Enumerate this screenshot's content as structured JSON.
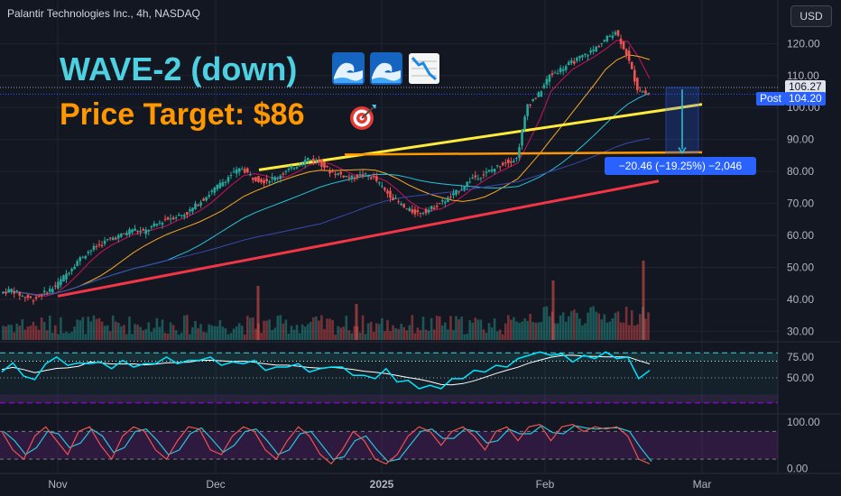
{
  "header": {
    "symbol_line": "Palantir Technologies Inc., 4h, NASDAQ",
    "currency_button": "USD"
  },
  "annotations": {
    "wave_title": "WAVE-2 (down)",
    "wave_icons": [
      "water-wave-icon",
      "water-wave-icon",
      "chart-decreasing-icon"
    ],
    "price_target": "Price Target: $86",
    "target_icon": "direct-hit-icon",
    "measure_label": "−20.46 (−19.25%) −2,046"
  },
  "price_scale": {
    "last_price": "106.27",
    "post_label": "Post",
    "post_price": "104.20",
    "colors": {
      "last": "#2962ff",
      "post": "#2962ff"
    }
  },
  "colors": {
    "background": "#131722",
    "up": "#26a69a",
    "down": "#ef5350",
    "wave_text": "#4dd0e1",
    "target_text": "#ff9800",
    "yellow_line": "#ffeb3b",
    "orange_line": "#ff9800",
    "red_line": "#f23645",
    "rsi_line": "#00e5ff",
    "stoch_k": "#ef5350",
    "stoch_d": "#26c6da"
  },
  "chart_data": [
    {
      "type": "line",
      "title": "Palantir Technologies Inc., 4h, NASDAQ",
      "y_axis": {
        "ticks": [
          "120.00",
          "110.00",
          "100.00",
          "90.00",
          "80.00",
          "70.00",
          "60.00",
          "50.00",
          "40.00",
          "30.00"
        ],
        "ylim": [
          27,
          128
        ]
      },
      "x_axis": {
        "ticks": [
          "Nov",
          "Dec",
          "2025",
          "Feb",
          "Mar"
        ]
      },
      "series": [
        {
          "values": [
            42,
            43,
            41,
            40,
            42,
            44,
            48,
            52,
            55,
            57,
            59,
            60,
            62,
            61,
            63,
            65,
            66,
            67,
            70,
            73,
            76,
            79,
            81,
            78,
            77,
            78,
            80,
            82,
            84,
            83,
            80,
            79,
            78,
            79,
            78,
            74,
            71,
            68,
            67,
            68,
            70,
            72,
            75,
            78,
            79,
            81,
            83,
            84,
            101,
            104,
            110,
            112,
            114,
            116,
            118,
            121,
            124,
            117,
            106,
            104
          ]
        }
      ],
      "levels": {
        "target": 86,
        "last": 106.27,
        "post": 104.2,
        "measure_top": 106.27,
        "measure_bottom": 85.81
      }
    },
    {
      "type": "line",
      "title": "",
      "y_axis": {
        "ticks": [
          "75.00",
          "50.00"
        ],
        "ylim": [
          10,
          90
        ]
      },
      "series": [
        {
          "values": [
            60,
            65,
            55,
            45,
            70,
            72,
            68,
            65,
            70,
            66,
            64,
            68,
            66,
            64,
            70,
            72,
            70,
            68,
            74,
            72,
            68,
            66,
            70,
            68,
            62,
            60,
            66,
            64,
            60,
            58,
            66,
            60,
            56,
            50,
            52,
            58,
            48,
            44,
            40,
            38,
            40,
            46,
            52,
            56,
            60,
            62,
            66,
            70,
            80,
            78,
            80,
            76,
            72,
            74,
            76,
            78,
            76,
            72,
            52,
            56
          ]
        }
      ]
    },
    {
      "type": "line",
      "title": "",
      "y_axis": {
        "ticks": [
          "100.00",
          "0.00"
        ],
        "ylim": [
          -5,
          110
        ]
      },
      "series": [
        {
          "values": [
            80,
            40,
            20,
            70,
            90,
            60,
            30,
            80,
            90,
            50,
            20,
            70,
            90,
            80,
            40,
            20,
            60,
            90,
            85,
            40,
            30,
            70,
            90,
            80,
            40,
            20,
            60,
            90,
            70,
            30,
            10,
            40,
            80,
            60,
            20,
            10,
            30,
            70,
            90,
            80,
            50,
            80,
            90,
            70,
            40,
            80,
            90,
            60,
            90,
            95,
            60,
            90,
            95,
            80,
            90,
            85,
            90,
            70,
            20,
            10
          ]
        }
      ]
    }
  ]
}
